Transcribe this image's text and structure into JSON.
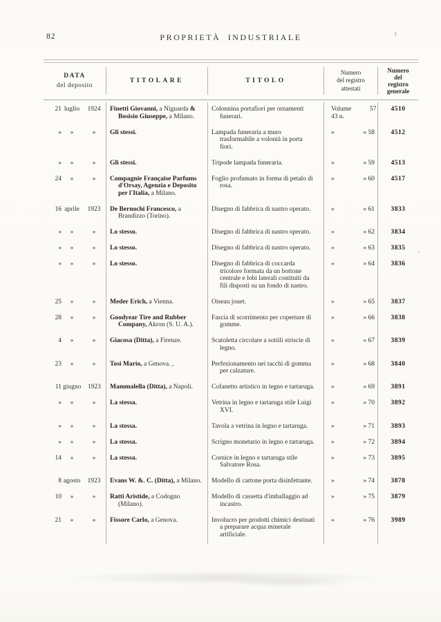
{
  "page": {
    "number": "82",
    "title": "PROPRIETÀ INDUSTRIALE"
  },
  "colors": {
    "paper": "#fbfaf6",
    "ink": "#2e2b27",
    "rule": "#a9a59c"
  },
  "artifacts": {
    "stray_top_right": "1",
    "stray_right_margin": "’"
  },
  "table": {
    "headers": {
      "data_title": "DATA",
      "data_sub": "del deposito",
      "titolare": "TITOLARE",
      "titolo": "TITOLO",
      "attestati": [
        "Numero",
        "del registro",
        "attestati"
      ],
      "generale": [
        "Numero",
        "del",
        "registro",
        "generale"
      ]
    },
    "rows": [
      {
        "day": "21",
        "month": "luglio",
        "year": "1924",
        "titolare": [
          {
            "b": true,
            "t": "Finetti Giovanni,"
          },
          {
            "b": false,
            "t": " a Niguarda "
          },
          {
            "b": true,
            "t": "& Bosisio Giuseppe,"
          },
          {
            "b": false,
            "t": " a Milano."
          }
        ],
        "titolo": "Colonnina portafiori per ornamenti funerari.",
        "reg_left": "Volume 43 n.",
        "reg_num": "57",
        "generale": "4510"
      },
      {
        "day": "»",
        "month": "»",
        "year": "»",
        "titolare": [
          {
            "b": true,
            "t": "Gli stessi."
          }
        ],
        "titolo": "Lampada funeraria a muro trasformabile a volontà in porta fiori.",
        "reg_left": "»",
        "reg_num": "» 58",
        "generale": "4512"
      },
      {
        "day": "»",
        "month": "»",
        "year": "»",
        "titolare": [
          {
            "b": true,
            "t": "Gli stessi."
          }
        ],
        "titolo": "Tripode lampada funeraria.",
        "reg_left": "»",
        "reg_num": "» 59",
        "generale": "4513"
      },
      {
        "day": "24",
        "month": "»",
        "year": "»",
        "titolare": [
          {
            "b": true,
            "t": "Compagnie Française Parfums d'Orsay, Agenzia e Deposito per l'Italia,"
          },
          {
            "b": false,
            "t": " a Milano."
          }
        ],
        "titolo": "Foglio profumato in forma di petalo di rosa.",
        "reg_left": "»",
        "reg_num": "» 60",
        "generale": "4517"
      },
      {
        "day": "16",
        "month": "aprile",
        "year": "1923",
        "titolare": [
          {
            "b": true,
            "t": "De Bernochi Francesco,"
          },
          {
            "b": false,
            "t": " a Brandizzo (Torino)."
          }
        ],
        "titolo": "Disegno di fabbrica di nastro operato.",
        "reg_left": "»",
        "reg_num": "» 61",
        "generale": "3833"
      },
      {
        "day": "»",
        "month": "»",
        "year": "»",
        "titolare": [
          {
            "b": true,
            "t": "Lo stesso."
          }
        ],
        "titolo": "Disegno di fabbrica di nastro operato.",
        "reg_left": "»",
        "reg_num": "» 62",
        "generale": "3834"
      },
      {
        "day": "»",
        "month": "»",
        "year": "»",
        "titolare": [
          {
            "b": true,
            "t": "Lo stesso."
          }
        ],
        "titolo": "Disegno di fabbrica di nastro operato.",
        "reg_left": "»",
        "reg_num": "» 63",
        "generale": "3835"
      },
      {
        "day": "»",
        "month": "»",
        "year": "»",
        "titolare": [
          {
            "b": true,
            "t": "Lo stesso."
          }
        ],
        "titolo": "Disegno di fabbrica di coccarda tricolore formata da un bottone centrale e lobi laterali costituiti da fili disposti su un fondo di nastro.",
        "reg_left": "»",
        "reg_num": "» 64",
        "generale": "3836"
      },
      {
        "day": "25",
        "month": "»",
        "year": "»",
        "titolare": [
          {
            "b": true,
            "t": "Meder Erich,"
          },
          {
            "b": false,
            "t": " a Vienna."
          }
        ],
        "titolo": "Oiseau jouet.",
        "reg_left": "»",
        "reg_num": "» 65",
        "generale": "3837"
      },
      {
        "day": "28",
        "month": "»",
        "year": "»",
        "titolare": [
          {
            "b": true,
            "t": "Goodyear Tire and Rubber Company,"
          },
          {
            "b": false,
            "t": " Akron (S. U. A.)."
          }
        ],
        "titolo": "Fascia di scorrimento per coperture di gomme.",
        "reg_left": "»",
        "reg_num": "» 66",
        "generale": "3838"
      },
      {
        "day": "4",
        "month": "»",
        "year": "»",
        "titolare": [
          {
            "b": true,
            "t": "Giacosa (Ditta),"
          },
          {
            "b": false,
            "t": " a Firenze."
          }
        ],
        "titolo": "Scatoletta circolare a sottili striscie di legno.",
        "reg_left": "»",
        "reg_num": "» 67",
        "generale": "3839"
      },
      {
        "day": "23",
        "month": "»",
        "year": "»",
        "titolare": [
          {
            "b": true,
            "t": "Tosi Mario,"
          },
          {
            "b": false,
            "t": " a Genova. ,"
          }
        ],
        "titolo": "Perfezionamento nei tacchi di gomma per calzature.",
        "reg_left": "»",
        "reg_num": "» 68",
        "generale": "3840"
      },
      {
        "day": "11",
        "month": "giugno",
        "year": "1923",
        "titolare": [
          {
            "b": true,
            "t": "Mammalella (Ditta),"
          },
          {
            "b": false,
            "t": " a Napoli."
          }
        ],
        "titolo": "Cofanetto artistico in legno e tartaruga.",
        "reg_left": "»",
        "reg_num": "» 69",
        "generale": "3891"
      },
      {
        "day": "»",
        "month": "»",
        "year": "»",
        "titolare": [
          {
            "b": true,
            "t": "La stessa."
          }
        ],
        "titolo": "Vetrina in legno e tartaruga stile Luigi XVI.",
        "reg_left": "»",
        "reg_num": "» 70",
        "generale": "3892"
      },
      {
        "day": "»",
        "month": "»",
        "year": "»",
        "titolare": [
          {
            "b": true,
            "t": "La stessa."
          }
        ],
        "titolo": "Tavola a vetrina in legno e tartaruga.",
        "reg_left": "»",
        "reg_num": "» 71",
        "generale": "3893"
      },
      {
        "day": "»",
        "month": "»",
        "year": "»",
        "titolare": [
          {
            "b": true,
            "t": "La stessa."
          }
        ],
        "titolo": "Scrigno monetario in legno e tartaruga.",
        "reg_left": "»",
        "reg_num": "» 72",
        "generale": "3894"
      },
      {
        "day": "14",
        "month": "»",
        "year": "»",
        "titolare": [
          {
            "b": true,
            "t": "La stessa."
          }
        ],
        "titolo": "Cornice in legno e tartaruga stile Salvatore Rosa.",
        "reg_left": "»",
        "reg_num": "» 73",
        "generale": "3895"
      },
      {
        "day": "8",
        "month": "agosto",
        "year": "1923",
        "titolare": [
          {
            "b": true,
            "t": "Evans W. &. C. (Ditta),"
          },
          {
            "b": false,
            "t": " a Milano."
          }
        ],
        "titolo": "Modello di cartone porta disinfettante.",
        "reg_left": "»",
        "reg_num": "» 74",
        "generale": "3878"
      },
      {
        "day": "10",
        "month": "»",
        "year": "»",
        "titolare": [
          {
            "b": true,
            "t": "Ratti Aristide,"
          },
          {
            "b": false,
            "t": " a Codogno (Milano)."
          }
        ],
        "titolo": "Modello di cassetta d'imballaggio ad incastro.",
        "reg_left": "»",
        "reg_num": "» 75",
        "generale": "3879"
      },
      {
        "day": "21",
        "month": "»",
        "year": "»",
        "titolare": [
          {
            "b": true,
            "t": "Fissore Carlo,"
          },
          {
            "b": false,
            "t": " a Genova."
          }
        ],
        "titolo": "Involucro per prodotti chimici destinati a preparare acqua minerale artificiale.",
        "reg_left": "»",
        "reg_num": "» 76",
        "generale": "3989"
      }
    ]
  }
}
